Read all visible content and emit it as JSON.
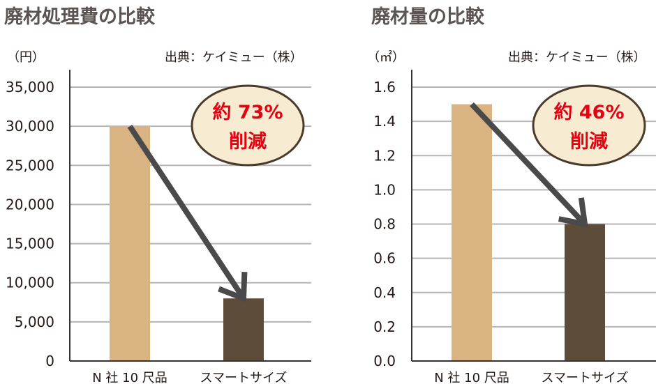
{
  "charts": [
    {
      "title": "廃材処理費の比較",
      "unit": "（円）",
      "source": "出典：ケイミュー（株）",
      "badge_line1": "約 73%",
      "badge_line2": "削減"
    },
    {
      "title": "廃材量の比較",
      "unit": "（㎡）",
      "source": "出典：ケイミュー（株）",
      "badge_line1": "約 46%",
      "badge_line2": "削減"
    }
  ],
  "colors": {
    "bar_n_company": "#d9b382",
    "bar_smart_size": "#5e4c3a",
    "grid": "#b5b5b5",
    "arrow": "#4a4a4a",
    "bubble_fill": "#f7ecd2",
    "bubble_stroke": "#4a3a2a",
    "badge_text": "#e60012"
  },
  "chart_data": [
    {
      "type": "bar",
      "title": "廃材処理費の比較",
      "ylabel": "（円）",
      "categories": [
        "N 社 10 尺品",
        "スマートサイズ"
      ],
      "values": [
        30000,
        8000
      ],
      "ylim": [
        0,
        35000
      ],
      "yticks": [
        0,
        5000,
        10000,
        15000,
        20000,
        25000,
        30000,
        35000
      ],
      "ytick_labels": [
        "0",
        "5,000",
        "10,000",
        "15,000",
        "20,000",
        "25,000",
        "30,000",
        "35,000"
      ],
      "grid": true,
      "annotation": "約 73% 削減"
    },
    {
      "type": "bar",
      "title": "廃材量の比較",
      "ylabel": "（㎡）",
      "categories": [
        "N 社 10 尺品",
        "スマートサイズ"
      ],
      "values": [
        1.5,
        0.8
      ],
      "ylim": [
        0,
        1.6
      ],
      "yticks": [
        0,
        0.2,
        0.4,
        0.6,
        0.8,
        1.0,
        1.2,
        1.4,
        1.6
      ],
      "ytick_labels": [
        "0.0",
        "0.2",
        "0.4",
        "0.6",
        "0.8",
        "1.0",
        "1.2",
        "1.4",
        "1.6"
      ],
      "grid": true,
      "annotation": "約 46% 削減"
    }
  ]
}
